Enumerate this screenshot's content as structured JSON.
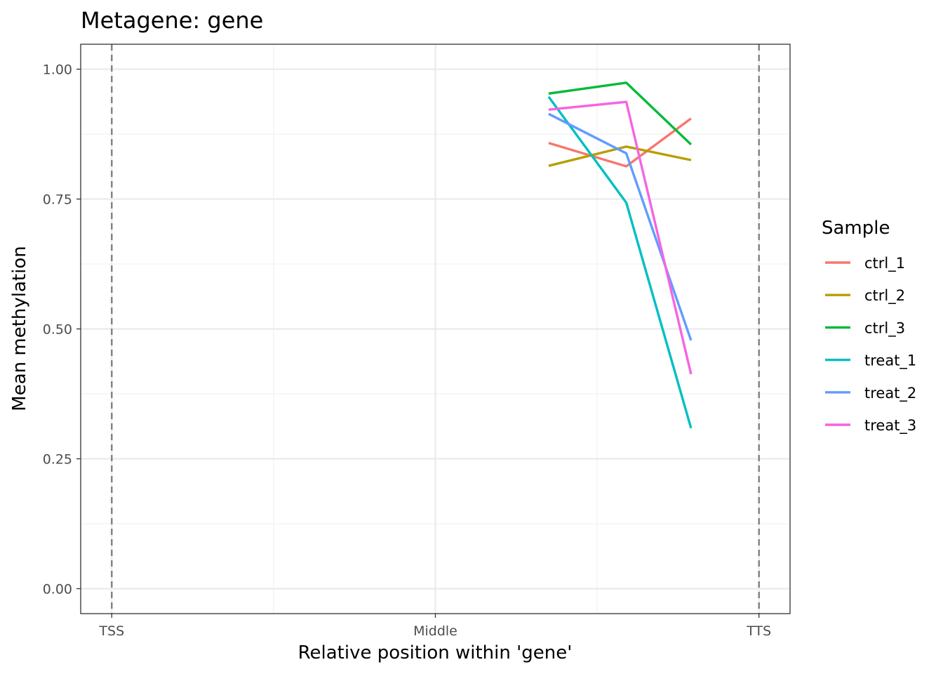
{
  "chart_data": {
    "type": "line",
    "title": "Metagene: gene",
    "xlabel": "Relative position within 'gene'",
    "ylabel": "Mean methylation",
    "xlim": [
      -0.048,
      1.048
    ],
    "ylim": [
      -0.048,
      1.048
    ],
    "x_ticks": [
      {
        "value": 0,
        "label": "TSS"
      },
      {
        "value": 0.5,
        "label": "Middle"
      },
      {
        "value": 1,
        "label": "TTS"
      }
    ],
    "y_ticks": [
      {
        "value": 0,
        "label": "0.00"
      },
      {
        "value": 0.25,
        "label": "0.25"
      },
      {
        "value": 0.5,
        "label": "0.50"
      },
      {
        "value": 0.75,
        "label": "0.75"
      },
      {
        "value": 1,
        "label": "1.00"
      }
    ],
    "grid": true,
    "reference_lines": [
      0,
      1
    ],
    "legend_title": "Sample",
    "legend_position": "right",
    "series": [
      {
        "name": "ctrl_1",
        "color": "#F8766D",
        "x": [
          0.675,
          0.795,
          0.895
        ],
        "y": [
          0.858,
          0.813,
          0.905
        ]
      },
      {
        "name": "ctrl_2",
        "color": "#B79F00",
        "x": [
          0.675,
          0.795,
          0.895
        ],
        "y": [
          0.814,
          0.851,
          0.825
        ]
      },
      {
        "name": "ctrl_3",
        "color": "#00BA38",
        "x": [
          0.675,
          0.795,
          0.895
        ],
        "y": [
          0.953,
          0.974,
          0.855
        ]
      },
      {
        "name": "treat_1",
        "color": "#00BFC4",
        "x": [
          0.675,
          0.795,
          0.895
        ],
        "y": [
          0.947,
          0.743,
          0.309
        ]
      },
      {
        "name": "treat_2",
        "color": "#619CFF",
        "x": [
          0.675,
          0.795,
          0.895
        ],
        "y": [
          0.914,
          0.838,
          0.478
        ]
      },
      {
        "name": "treat_3",
        "color": "#F564E3",
        "x": [
          0.675,
          0.795,
          0.895
        ],
        "y": [
          0.922,
          0.937,
          0.413
        ]
      }
    ]
  }
}
